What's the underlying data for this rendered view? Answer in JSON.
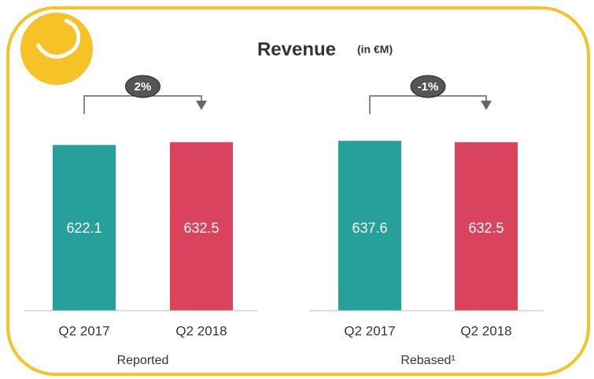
{
  "title": "Revenue",
  "subtitle": "(in €M)",
  "chart_data": [
    {
      "type": "bar",
      "xlabel": "Reported",
      "categories": [
        "Q2 2017",
        "Q2 2018"
      ],
      "values": [
        622.1,
        632.5
      ],
      "colors": [
        "#26a09a",
        "#d9435e"
      ],
      "ylim": [
        0,
        700
      ],
      "change": "2%"
    },
    {
      "type": "bar",
      "xlabel": "Rebased¹",
      "categories": [
        "Q2 2017",
        "Q2 2018"
      ],
      "values": [
        637.6,
        632.5
      ],
      "colors": [
        "#26a09a",
        "#d9435e"
      ],
      "ylim": [
        0,
        700
      ],
      "change": "-1%"
    }
  ]
}
